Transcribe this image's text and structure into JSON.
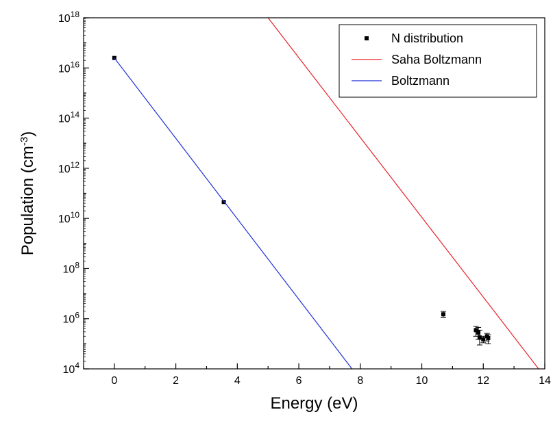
{
  "chart_data": {
    "type": "scatter",
    "title": "",
    "xlabel": "Energy (eV)",
    "ylabel": {
      "base": "Population (cm",
      "sup": "-3",
      "tail": ")"
    },
    "x_range": [
      -1,
      14
    ],
    "y_range": [
      10000,
      1000000000000000000
    ],
    "y_scale": "log",
    "x_ticks": [
      0,
      2,
      4,
      6,
      8,
      10,
      12,
      14
    ],
    "y_ticks": [
      {
        "value": 10000,
        "base": "10",
        "exp": "4"
      },
      {
        "value": 1000000,
        "base": "10",
        "exp": "6"
      },
      {
        "value": 100000000,
        "base": "10",
        "exp": "8"
      },
      {
        "value": 10000000000,
        "base": "10",
        "exp": "10"
      },
      {
        "value": 1000000000000,
        "base": "10",
        "exp": "12"
      },
      {
        "value": 100000000000000,
        "base": "10",
        "exp": "14"
      },
      {
        "value": 10000000000000000,
        "base": "10",
        "exp": "16"
      },
      {
        "value": 1000000000000000000,
        "base": "10",
        "exp": "18"
      }
    ],
    "legend_position": "top-right",
    "series": [
      {
        "name": "N distribution",
        "kind": "points",
        "color": "#000000",
        "points": [
          {
            "x": 0.0,
            "y": 25000000000000000
          },
          {
            "x": 3.56,
            "y": 45000000000
          },
          {
            "x": 10.7,
            "y": 1500000,
            "err_lo": 1150000,
            "err_hi": 1950000
          },
          {
            "x": 11.76,
            "y": 350000,
            "err_lo": 200000,
            "err_hi": 500000
          },
          {
            "x": 11.84,
            "y": 280000,
            "err_lo": 150000,
            "err_hi": 450000
          },
          {
            "x": 11.88,
            "y": 180000,
            "err_lo": 90000,
            "err_hi": 350000
          },
          {
            "x": 12.0,
            "y": 150000,
            "err_lo": 110000,
            "err_hi": 200000
          },
          {
            "x": 12.12,
            "y": 200000,
            "err_lo": 130000,
            "err_hi": 260000
          },
          {
            "x": 12.16,
            "y": 170000,
            "err_lo": 100000,
            "err_hi": 230000
          }
        ]
      },
      {
        "name": "Saha Boltzmann",
        "kind": "line",
        "color": "#e8202a",
        "x": [
          5.0,
          13.8
        ],
        "y": [
          1000000000000000000,
          10000
        ]
      },
      {
        "name": "Boltzmann",
        "kind": "line",
        "color": "#1f2fd6",
        "x": [
          0.0,
          7.73
        ],
        "y": [
          25000000000000000,
          10000
        ]
      }
    ]
  }
}
